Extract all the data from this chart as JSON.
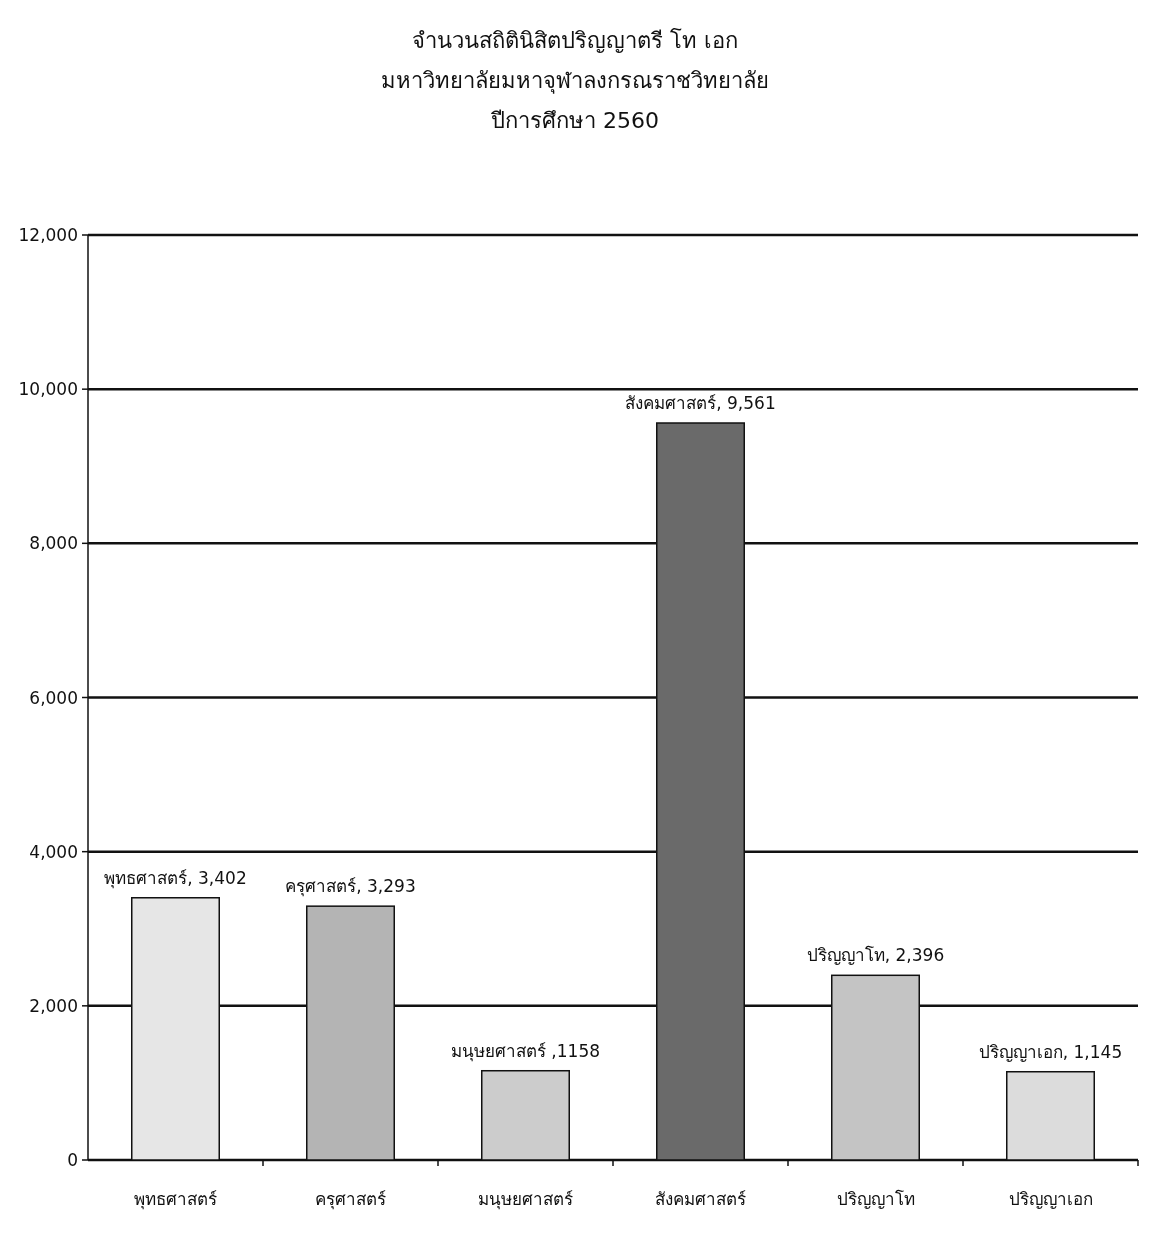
{
  "chart_data": {
    "type": "bar",
    "title": "จำนวนสถิตินิสิตปริญญาตรี โท เอก",
    "subtitle": "มหาวิทยาลัยมหาจุฬาลงกรณราชวิทยาลัย\nปีการศึกษา 2560",
    "categories": [
      "พุทธศาสตร์",
      "ครุศาสตร์",
      "มนุษยศาสตร์",
      "สังคมศาสตร์",
      "ปริญญาโท",
      "ปริญญาเอก"
    ],
    "values": [
      3402,
      3293,
      1158,
      9561,
      2396,
      1145
    ],
    "colors": [
      "#e6e6e6",
      "#b4b4b4",
      "#cccccc",
      "#6a6a6a",
      "#c4c4c4",
      "#dcdcdc"
    ],
    "value_labels": [
      "พุทธศาสตร์, 3,402",
      "ครุศาสตร์, 3,293",
      "มนุษยศาสตร์ ,1158",
      "สังคมศาสตร์, 9,561",
      "ปริญญาโท, 2,396",
      "ปริญญาเอก, 1,145"
    ],
    "ylim": [
      0,
      12000
    ],
    "yticks": [
      0,
      {
        "value": 2000,
        "label": "2,000"
      },
      {
        "value": 4000,
        "label": "4,000"
      },
      {
        "value": 6000,
        "label": "6,000"
      },
      {
        "value": 8000,
        "label": "8,000"
      },
      {
        "value": 10000,
        "label": "10,000"
      },
      {
        "value": 12000,
        "label": "12,000"
      }
    ],
    "grid": "y"
  }
}
